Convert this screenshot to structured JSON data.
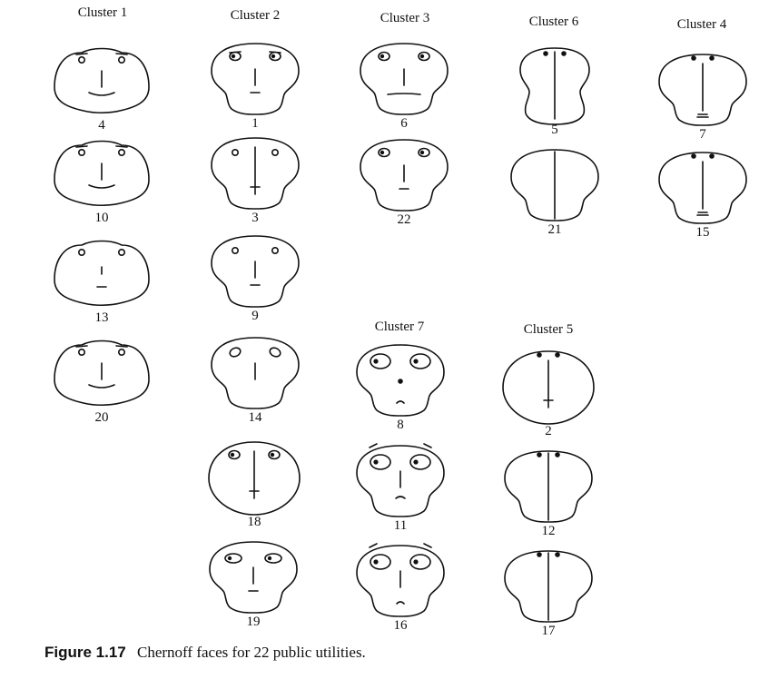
{
  "clusters": [
    {
      "title": "Cluster 1",
      "faces": [
        {
          "label": "4",
          "head": "egg",
          "eyes": "small",
          "brows": true,
          "nose": "short",
          "mouth": "smile"
        },
        {
          "label": "10",
          "head": "egg",
          "eyes": "small",
          "brows": true,
          "nose": "short",
          "mouth": "smile"
        },
        {
          "label": "13",
          "head": "egg",
          "eyes": "small",
          "brows": false,
          "nose": "tiny",
          "mouth": "line"
        },
        {
          "label": "20",
          "head": "egg",
          "eyes": "small",
          "brows": true,
          "nose": "short",
          "mouth": "smile"
        }
      ]
    },
    {
      "title": "Cluster 2",
      "faces": [
        {
          "label": "1",
          "head": "peanut",
          "eyes": "medium",
          "brows": true,
          "nose": "short",
          "mouth": "line"
        },
        {
          "label": "3",
          "head": "peanut",
          "eyes": "small",
          "brows": false,
          "nose": "long",
          "mouth": "line"
        },
        {
          "label": "9",
          "head": "peanut",
          "eyes": "small",
          "brows": false,
          "nose": "short",
          "mouth": "line"
        },
        {
          "label": "14",
          "head": "peanut",
          "eyes": "tilted",
          "brows": false,
          "nose": "short",
          "mouth": "none"
        },
        {
          "label": "18",
          "head": "round",
          "eyes": "medium",
          "brows": false,
          "nose": "long",
          "mouth": "line"
        },
        {
          "label": "19",
          "head": "peanut",
          "eyes": "wide",
          "brows": false,
          "nose": "short",
          "mouth": "line"
        }
      ]
    },
    {
      "title": "Cluster 3",
      "faces": [
        {
          "label": "6",
          "head": "peanut",
          "eyes": "medium",
          "brows": false,
          "nose": "short",
          "mouth": "flatwide"
        },
        {
          "label": "22",
          "head": "peanut",
          "eyes": "medium",
          "brows": false,
          "nose": "short",
          "mouth": "line"
        }
      ]
    },
    {
      "title": "Cluster 4",
      "faces": [
        {
          "label": "8",
          "head": "peanut",
          "eyes": "big",
          "brows": false,
          "nose": "dot",
          "mouth": "arc"
        },
        {
          "label": "11",
          "head": "peanut",
          "eyes": "big",
          "brows": true,
          "nose": "short",
          "mouth": "frown"
        },
        {
          "label": "16",
          "head": "peanut",
          "eyes": "big",
          "brows": true,
          "nose": "short",
          "mouth": "arc"
        }
      ]
    },
    {
      "title": "Cluster 5",
      "faces": [
        {
          "label": "5",
          "head": "tall",
          "eyes": "dots",
          "brows": false,
          "nose": "full",
          "mouth": "none"
        },
        {
          "label": "21",
          "head": "peanut",
          "eyes": "none",
          "brows": false,
          "nose": "full",
          "mouth": "none"
        }
      ]
    },
    {
      "title": "Cluster 6",
      "faces": [
        {
          "label": "2",
          "head": "round",
          "eyes": "dots",
          "brows": false,
          "nose": "long",
          "mouth": "line"
        },
        {
          "label": "12",
          "head": "peanut",
          "eyes": "dots",
          "brows": false,
          "nose": "full",
          "mouth": "none"
        },
        {
          "label": "17",
          "head": "peanut",
          "eyes": "dots",
          "brows": false,
          "nose": "full",
          "mouth": "none"
        }
      ]
    },
    {
      "title": "Cluster 7",
      "faces": [
        {
          "label": "7",
          "head": "peanut",
          "eyes": "dots",
          "brows": false,
          "nose": "long",
          "mouth": "dline"
        },
        {
          "label": "15",
          "head": "peanut",
          "eyes": "dots",
          "brows": false,
          "nose": "long",
          "mouth": "dline"
        }
      ]
    }
  ],
  "caption": {
    "figure_number": "Figure 1.17",
    "text": "Chernoff faces for 22 public utilities."
  }
}
